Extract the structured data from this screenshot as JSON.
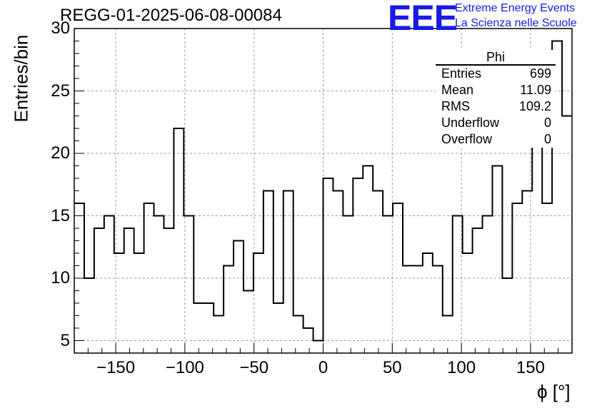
{
  "title": "REGG-01-2025-06-08-00084",
  "logo": {
    "mark": "EEE",
    "line1": "Extreme Energy Events",
    "line2": "La Scienza nelle Scuole",
    "color": "#1a1ae6"
  },
  "stats_box": {
    "name": "Phi",
    "rows": [
      {
        "label": "Entries",
        "value": "699"
      },
      {
        "label": "Mean",
        "value": "11.09"
      },
      {
        "label": "RMS",
        "value": "109.2"
      },
      {
        "label": "Underflow",
        "value": "0"
      },
      {
        "label": "Overflow",
        "value": "0"
      }
    ]
  },
  "chart_data": {
    "type": "bar",
    "histogram": true,
    "title": "REGG-01-2025-06-08-00084",
    "xlabel": "ϕ [°]",
    "ylabel": "Entries/bin",
    "xlim": [
      -180,
      180
    ],
    "ylim": [
      4,
      30
    ],
    "grid": true,
    "line_color": "#000000",
    "x_ticks": [
      "−150",
      "−100",
      "−50",
      "0",
      "50",
      "100",
      "150"
    ],
    "x_tick_values": [
      -150,
      -100,
      -50,
      0,
      50,
      100,
      150
    ],
    "y_ticks": [
      "5",
      "10",
      "15",
      "20",
      "25",
      "30"
    ],
    "y_tick_values": [
      5,
      10,
      15,
      20,
      25,
      30
    ],
    "bin_edges_start": -180,
    "bin_width": 7.2,
    "values": [
      16,
      10,
      14,
      15,
      12,
      14,
      12,
      16,
      15,
      14,
      22,
      15,
      8,
      8,
      7,
      11,
      13,
      9,
      12,
      17,
      8,
      17,
      7,
      6,
      5,
      18,
      17,
      15,
      18,
      19,
      17,
      15,
      16,
      11,
      11,
      12,
      11,
      7,
      15,
      12,
      14,
      15,
      19,
      10,
      16,
      17,
      23,
      16,
      29,
      23
    ]
  }
}
